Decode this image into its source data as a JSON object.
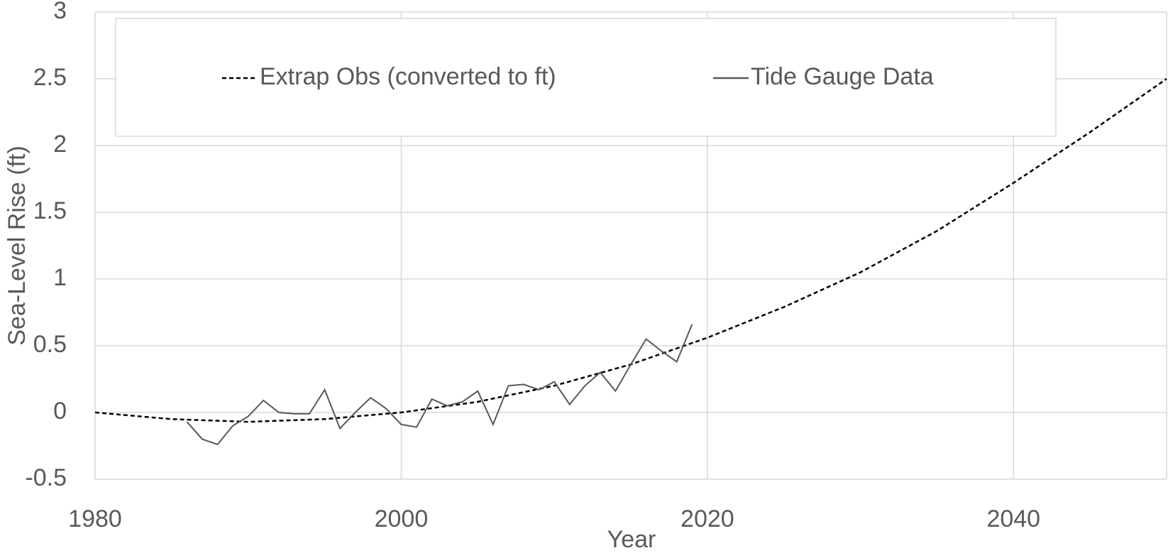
{
  "chart_data": {
    "type": "line",
    "xlabel": "Year",
    "ylabel": "Sea-Level Rise (ft)",
    "xlim": [
      1980,
      2050
    ],
    "xticks": [
      1980,
      2000,
      2020,
      2040
    ],
    "ylim": [
      -0.5,
      3
    ],
    "yticks": [
      -0.5,
      0,
      0.5,
      1,
      1.5,
      2,
      2.5,
      3
    ],
    "grid": true,
    "legend": "top",
    "series": [
      {
        "name": "Extrap Obs (converted to ft)",
        "color": "#000000",
        "dash": true,
        "x": [
          1980,
          1985,
          1990,
          1995,
          2000,
          2005,
          2010,
          2015,
          2020,
          2025,
          2030,
          2035,
          2040,
          2045,
          2050
        ],
        "values": [
          0,
          -0.05,
          -0.07,
          -0.05,
          0,
          0.08,
          0.2,
          0.36,
          0.56,
          0.79,
          1.05,
          1.36,
          1.72,
          2.1,
          2.5
        ]
      },
      {
        "name": "Tide Gauge Data",
        "color": "#595959",
        "dash": false,
        "x": [
          1986,
          1987,
          1988,
          1989,
          1990,
          1991,
          1992,
          1993,
          1994,
          1995,
          1996,
          1997,
          1998,
          1999,
          2000,
          2001,
          2002,
          2003,
          2004,
          2005,
          2006,
          2007,
          2008,
          2009,
          2010,
          2011,
          2012,
          2013,
          2014,
          2015,
          2016,
          2017,
          2018,
          2019
        ],
        "values": [
          -0.07,
          -0.2,
          -0.24,
          -0.1,
          -0.03,
          0.09,
          0.0,
          -0.01,
          -0.01,
          0.17,
          -0.12,
          0.0,
          0.11,
          0.03,
          -0.09,
          -0.11,
          0.1,
          0.05,
          0.08,
          0.16,
          -0.09,
          0.2,
          0.21,
          0.17,
          0.23,
          0.06,
          0.2,
          0.3,
          0.16,
          0.36,
          0.55,
          0.46,
          0.38,
          0.66
        ]
      }
    ]
  }
}
